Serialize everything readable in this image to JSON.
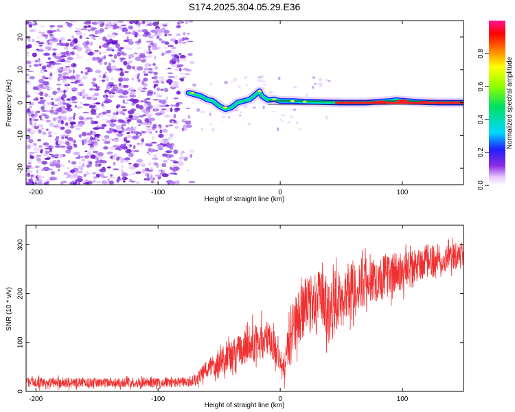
{
  "title": "S174.2025.304.05.29.E36",
  "chart_data": [
    {
      "type": "heatmap",
      "name": "spectrogram",
      "xlabel": "Height of straight line (km)",
      "ylabel": "Frequency (Hz)",
      "xlim": [
        -208,
        150
      ],
      "ylim": [
        -25,
        25
      ],
      "xticks": [
        -200,
        -100,
        0,
        100
      ],
      "yticks": [
        -20,
        -10,
        0,
        10,
        20
      ],
      "noise_region_x": [
        -208,
        -72
      ],
      "signal_start_x": -75,
      "signal_trace": {
        "x": [
          -75,
          -70,
          -65,
          -60,
          -55,
          -50,
          -45,
          -40,
          -35,
          -30,
          -25,
          -20,
          -17,
          -15,
          -10,
          -5,
          0,
          5,
          10,
          20,
          30,
          40,
          50,
          60,
          70,
          80,
          90,
          95,
          100,
          110,
          120,
          130,
          140,
          150
        ],
        "freq": [
          3,
          2.5,
          2,
          1,
          0.5,
          -1,
          -2,
          -1.5,
          0,
          0.5,
          1,
          2.5,
          3.5,
          2,
          0.8,
          1,
          0.5,
          0.5,
          0.5,
          0.3,
          0.2,
          0.1,
          0,
          0,
          0,
          0.3,
          0.5,
          0.8,
          0.6,
          0.3,
          0.1,
          0,
          0,
          0
        ]
      },
      "colorbar": {
        "label": "Normalized spectral amplitude",
        "range": [
          0,
          1
        ],
        "ticks": [
          "0.0",
          "0.2",
          "0.4",
          "0.6",
          "0.8"
        ]
      }
    },
    {
      "type": "line",
      "name": "snr",
      "xlabel": "Height of straight line (km)",
      "ylabel": "SNR (10 * v/v)",
      "xlim": [
        -208,
        150
      ],
      "ylim": [
        0,
        340
      ],
      "xticks": [
        -200,
        -100,
        0,
        100
      ],
      "yticks": [
        0,
        100,
        200,
        300
      ],
      "color": "#f03030",
      "series": [
        {
          "name": "SNR",
          "x": [
            -208,
            -180,
            -150,
            -120,
            -90,
            -75,
            -68,
            -60,
            -50,
            -40,
            -30,
            -20,
            -10,
            -5,
            0,
            2,
            5,
            10,
            20,
            30,
            35,
            40,
            50,
            60,
            70,
            80,
            90,
            100,
            110,
            120,
            130,
            140,
            150
          ],
          "mean": [
            18,
            18,
            18,
            18,
            18,
            18,
            25,
            45,
            65,
            70,
            90,
            100,
            105,
            95,
            60,
            40,
            70,
            130,
            170,
            185,
            190,
            160,
            200,
            215,
            225,
            230,
            240,
            245,
            255,
            265,
            270,
            275,
            280
          ],
          "amp": [
            10,
            10,
            10,
            10,
            10,
            10,
            12,
            20,
            30,
            35,
            35,
            40,
            40,
            35,
            30,
            25,
            40,
            55,
            60,
            60,
            60,
            70,
            55,
            55,
            50,
            45,
            45,
            40,
            35,
            35,
            30,
            28,
            25
          ]
        }
      ]
    }
  ]
}
